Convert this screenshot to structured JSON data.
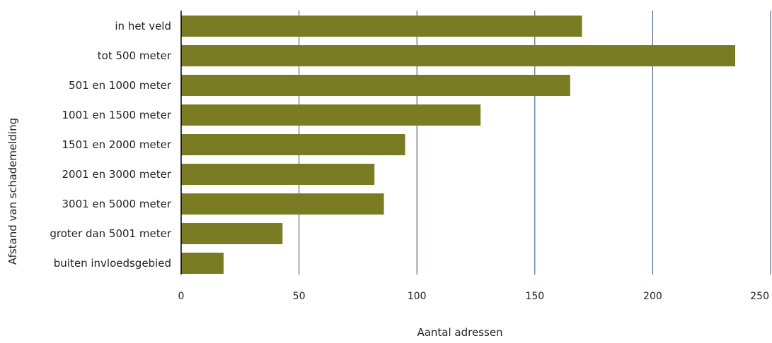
{
  "chart_data": {
    "type": "bar",
    "orientation": "horizontal",
    "categories": [
      "in het veld",
      "tot 500 meter",
      "501 en 1000 meter",
      "1001 en 1500 meter",
      "1501 en 2000 meter",
      "2001 en 3000 meter",
      "3001 en 5000 meter",
      "groter dan 5001 meter",
      "buiten invloedsgebied"
    ],
    "values": [
      170,
      235,
      165,
      127,
      95,
      82,
      86,
      43,
      18
    ],
    "xlabel": "Aantal adressen",
    "ylabel": "Afstand van schademelding",
    "xlim": [
      0,
      250
    ],
    "xticks": [
      0,
      50,
      100,
      150,
      200,
      250
    ],
    "xtick_labels": [
      "0",
      "50",
      "100",
      "150",
      "200",
      "250"
    ],
    "grid": "vertical",
    "legend": "none",
    "colors": {
      "bar": "#7a7c24",
      "grid": "#2f4f6f",
      "axis": "#000000"
    }
  }
}
